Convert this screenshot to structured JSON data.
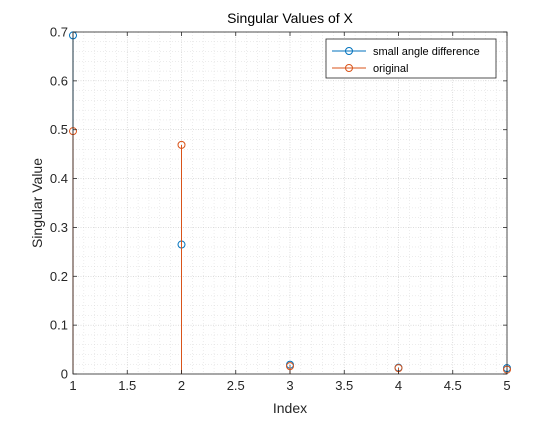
{
  "chart_data": {
    "type": "stem",
    "title": "Singular Values of X",
    "xlabel": "Index",
    "ylabel": "Singular Value",
    "xlim": [
      1,
      5
    ],
    "ylim": [
      0,
      0.7
    ],
    "xticks": [
      1,
      1.5,
      2,
      2.5,
      3,
      3.5,
      4,
      4.5,
      5
    ],
    "xtick_labels": [
      "1",
      "1.5",
      "2",
      "2.5",
      "3",
      "3.5",
      "4",
      "4.5",
      "5"
    ],
    "yticks": [
      0,
      0.1,
      0.2,
      0.3,
      0.4,
      0.5,
      0.6,
      0.7
    ],
    "ytick_labels": [
      "0",
      "0.1",
      "0.2",
      "0.3",
      "0.4",
      "0.5",
      "0.6",
      "0.7"
    ],
    "grid": true,
    "minor_grid": true,
    "legend_location": "top-right",
    "series": [
      {
        "name": "small angle difference",
        "color": "#0072BD",
        "x": [
          1,
          2,
          3,
          4,
          5
        ],
        "values": [
          0.693,
          0.265,
          0.019,
          0.013,
          0.012
        ]
      },
      {
        "name": "original",
        "color": "#D95319",
        "x": [
          1,
          2,
          3,
          4,
          5
        ],
        "values": [
          0.497,
          0.469,
          0.016,
          0.012,
          0.009
        ]
      }
    ]
  }
}
